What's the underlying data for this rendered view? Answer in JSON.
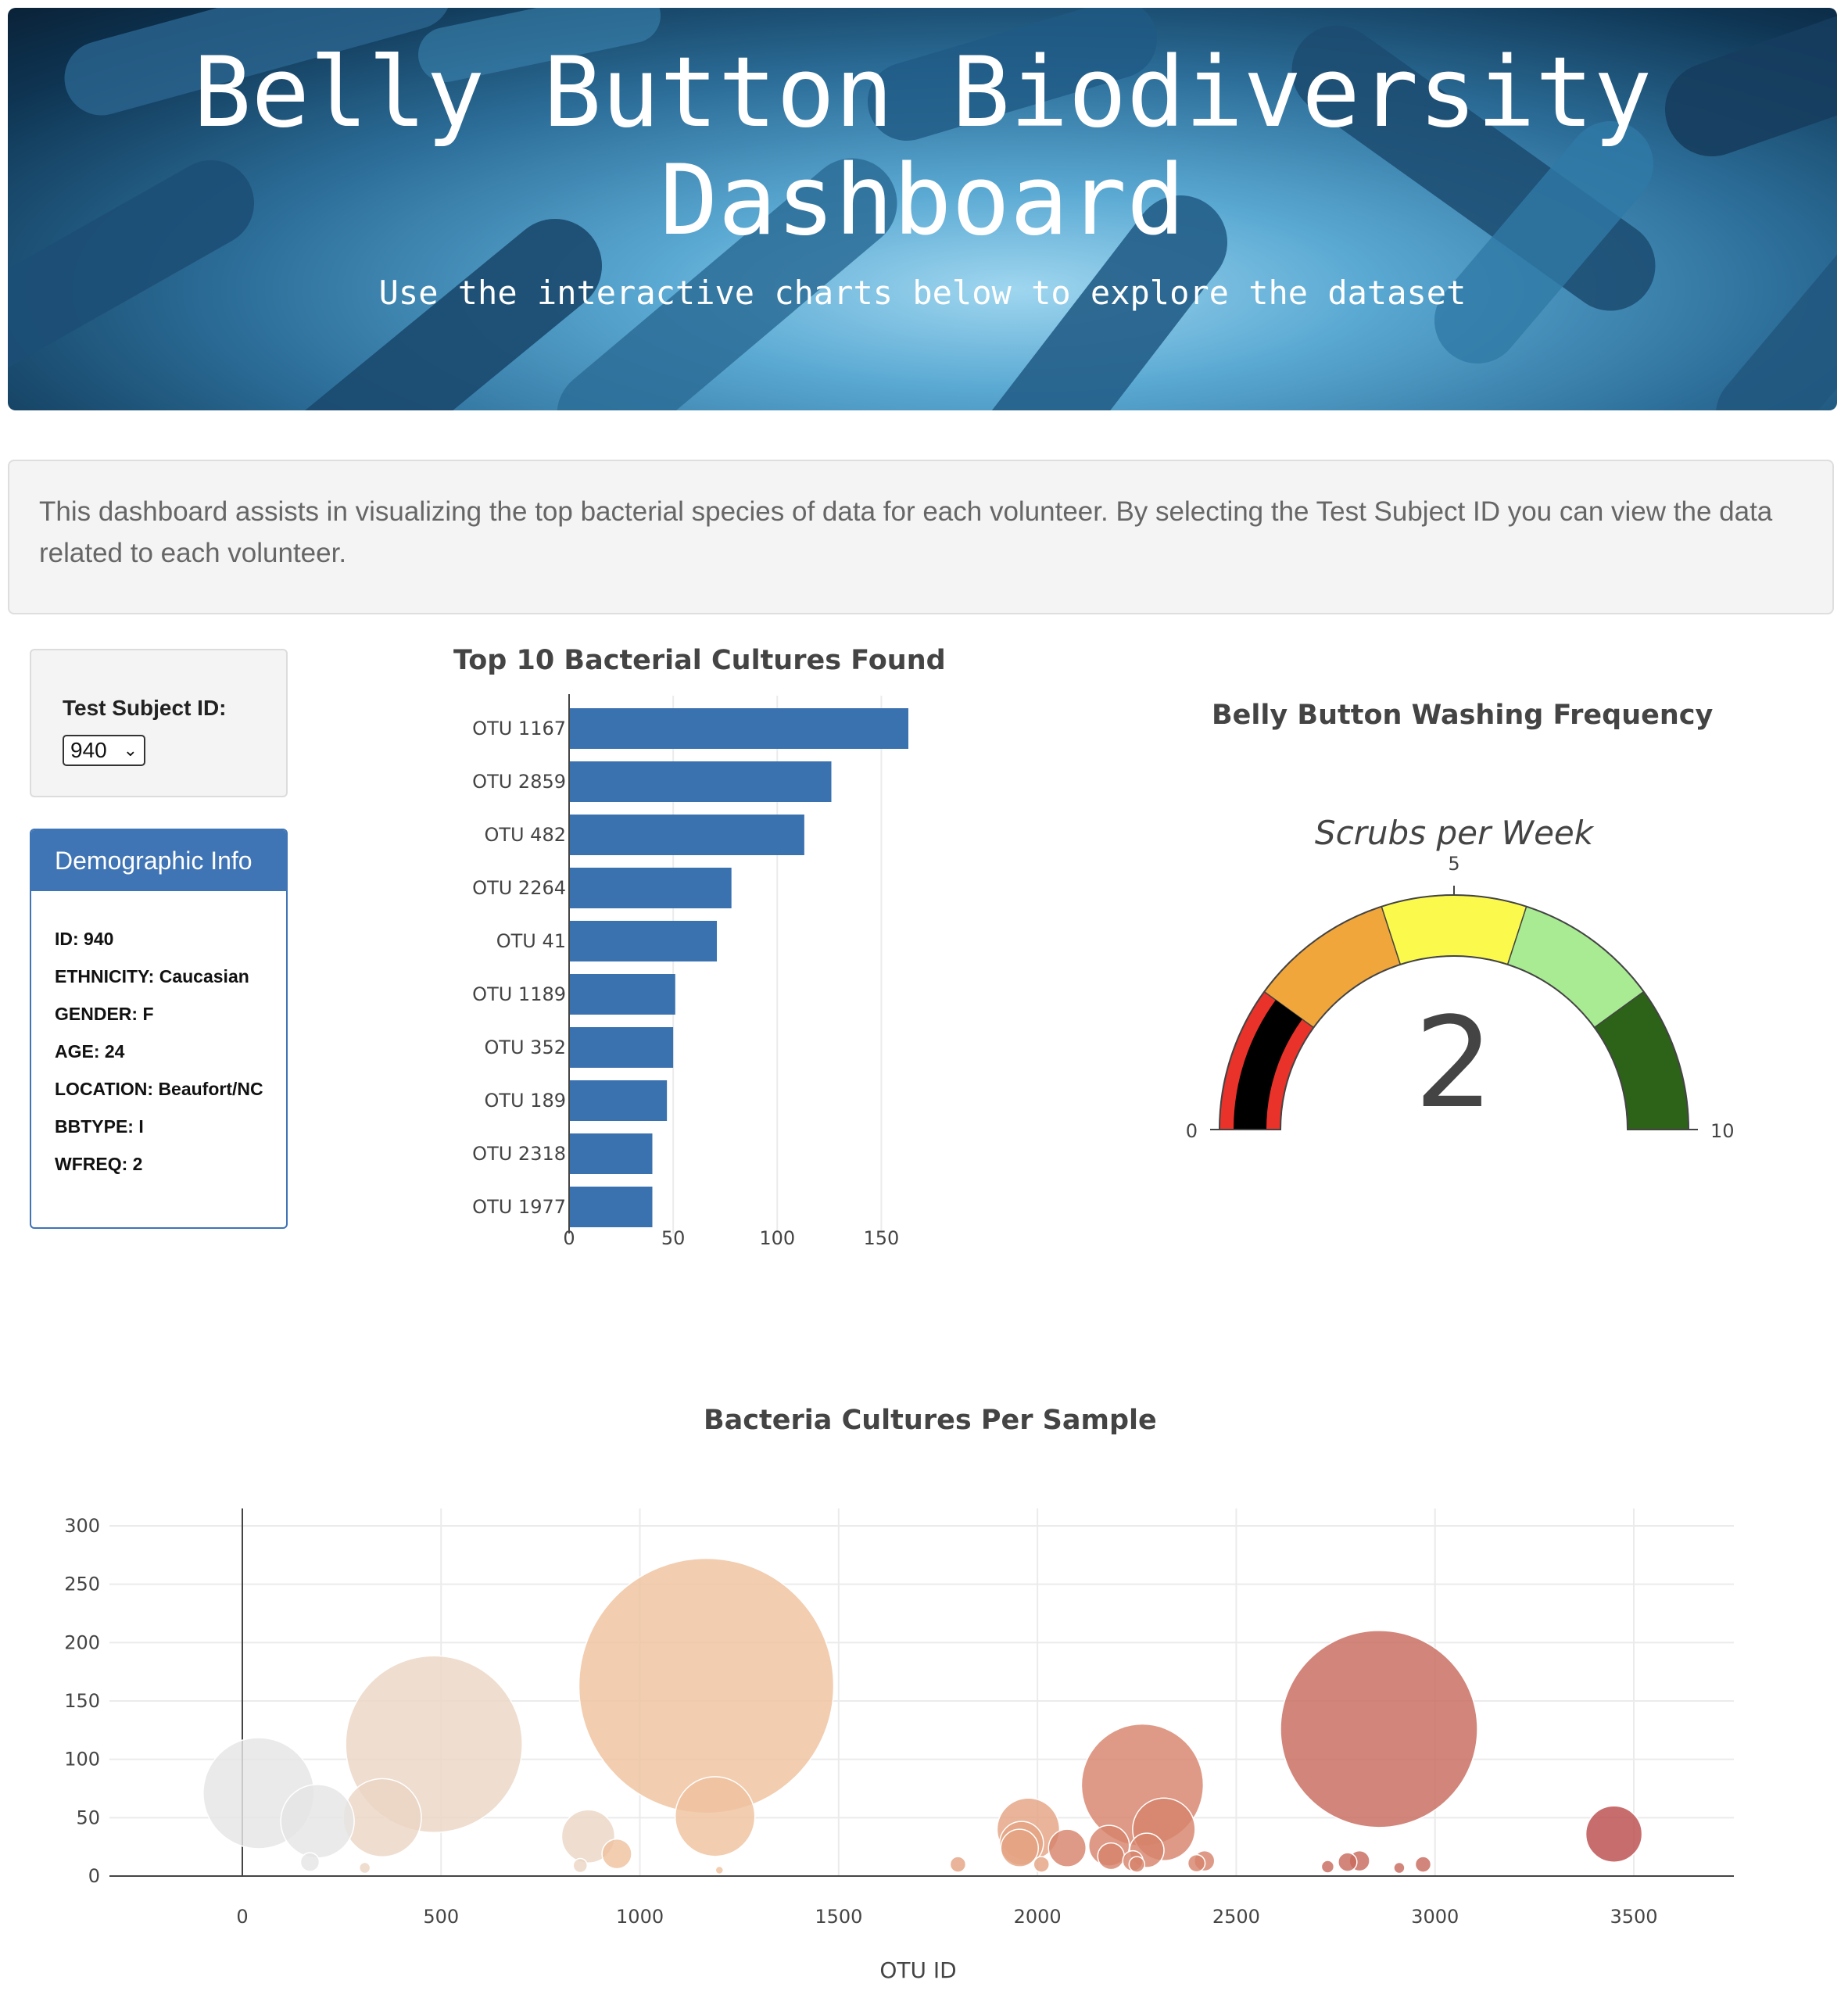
{
  "header": {
    "title": "Belly Button Biodiversity Dashboard",
    "subtitle": "Use the interactive charts below to explore the dataset"
  },
  "intro": {
    "text": "This dashboard assists in visualizing the top bacterial species of data for each volunteer. By selecting the Test Subject ID you can view the data related to each volunteer."
  },
  "selector": {
    "label": "Test Subject ID:",
    "value": "940"
  },
  "demographic": {
    "title": "Demographic Info",
    "rows": [
      "ID: 940",
      "ETHNICITY: Caucasian",
      "GENDER: F",
      "AGE: 24",
      "LOCATION: Beaufort/NC",
      "BBTYPE: I",
      "WFREQ: 2"
    ]
  },
  "colors": {
    "bar": "#3a72b0",
    "gauge_bands": [
      "#e8322a",
      "#f0a63a",
      "#fbfa4c",
      "#a8eb92",
      "#2d6319"
    ],
    "gauge_needle": "#000000"
  },
  "chart_data": [
    {
      "type": "bar",
      "orientation": "horizontal",
      "title": "Top 10 Bacterial Cultures Found",
      "categories": [
        "OTU 1167",
        "OTU 2859",
        "OTU 482",
        "OTU 2264",
        "OTU 41",
        "OTU 1189",
        "OTU 352",
        "OTU 189",
        "OTU 2318",
        "OTU 1977"
      ],
      "values": [
        163,
        126,
        113,
        78,
        71,
        51,
        50,
        47,
        40,
        40
      ],
      "xticks": [
        0,
        50,
        100,
        150
      ],
      "xlim": [
        0,
        163
      ]
    },
    {
      "type": "gauge",
      "title": "Belly Button Washing Frequency",
      "subtitle": "Scrubs per Week",
      "value": 2,
      "range": [
        0,
        10
      ],
      "tick_labels": [
        "0",
        "5",
        "10"
      ],
      "bands": [
        [
          0,
          2
        ],
        [
          2,
          4
        ],
        [
          4,
          6
        ],
        [
          6,
          8
        ],
        [
          8,
          10
        ]
      ]
    },
    {
      "type": "scatter",
      "title": "Bacteria Cultures Per Sample",
      "xlabel": "OTU ID",
      "xticks": [
        0,
        500,
        1000,
        1500,
        2000,
        2500,
        3000,
        3500
      ],
      "yticks": [
        0,
        50,
        100,
        150,
        200,
        250,
        300
      ],
      "xlim": [
        -340,
        3750
      ],
      "ylim": [
        0,
        315
      ],
      "color_scale": [
        "#e5e5e5",
        "#ecd6c5",
        "#efc29f",
        "#e4a483",
        "#d7846b",
        "#c86a5d",
        "#bc4d4d"
      ],
      "points": [
        {
          "x": 41,
          "y": 71
        },
        {
          "x": 189,
          "y": 47
        },
        {
          "x": 170,
          "y": 12
        },
        {
          "x": 308,
          "y": 7
        },
        {
          "x": 352,
          "y": 50
        },
        {
          "x": 482,
          "y": 113
        },
        {
          "x": 870,
          "y": 34
        },
        {
          "x": 850,
          "y": 9
        },
        {
          "x": 942,
          "y": 19
        },
        {
          "x": 1167,
          "y": 163
        },
        {
          "x": 1189,
          "y": 51
        },
        {
          "x": 1200,
          "y": 5
        },
        {
          "x": 1800,
          "y": 10
        },
        {
          "x": 1977,
          "y": 40
        },
        {
          "x": 1960,
          "y": 28
        },
        {
          "x": 1955,
          "y": 24
        },
        {
          "x": 2010,
          "y": 10
        },
        {
          "x": 2075,
          "y": 24
        },
        {
          "x": 2180,
          "y": 26
        },
        {
          "x": 2185,
          "y": 17
        },
        {
          "x": 2264,
          "y": 78
        },
        {
          "x": 2240,
          "y": 13
        },
        {
          "x": 2250,
          "y": 10
        },
        {
          "x": 2275,
          "y": 22
        },
        {
          "x": 2318,
          "y": 40
        },
        {
          "x": 2400,
          "y": 11
        },
        {
          "x": 2420,
          "y": 13
        },
        {
          "x": 2730,
          "y": 8
        },
        {
          "x": 2780,
          "y": 12
        },
        {
          "x": 2810,
          "y": 13
        },
        {
          "x": 2859,
          "y": 126
        },
        {
          "x": 2910,
          "y": 7
        },
        {
          "x": 2970,
          "y": 10
        },
        {
          "x": 3450,
          "y": 36
        }
      ]
    }
  ]
}
